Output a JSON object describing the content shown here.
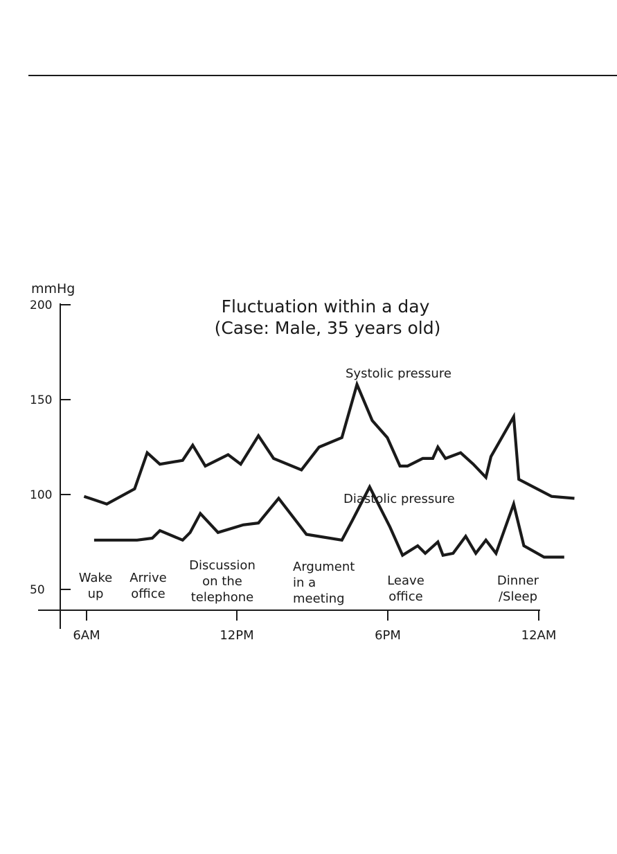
{
  "chart_data": {
    "type": "line",
    "title": "Fluctuation within a day",
    "subtitle": "(Case: Male, 35 years old)",
    "ylabel": "mmHg",
    "xlabel": "",
    "ylim": [
      50,
      200
    ],
    "y_ticks": [
      200,
      150,
      100,
      50
    ],
    "x_ticks": [
      "6AM",
      "12PM",
      "6PM",
      "12AM"
    ],
    "x_unit": "hours after midnight",
    "grid": false,
    "annotations": [
      {
        "lines": [
          "Wake",
          "up"
        ],
        "x": 6.5
      },
      {
        "lines": [
          "Arrive",
          "office"
        ],
        "x": 8.7
      },
      {
        "lines": [
          "Discussion",
          "on the",
          "telephone"
        ],
        "x": 10.8
      },
      {
        "lines": [
          "Argument",
          "in a",
          "meeting"
        ],
        "x": 15.1
      },
      {
        "lines": [
          "Leave",
          "office"
        ],
        "x": 19.2
      },
      {
        "lines": [
          "Dinner",
          "/Sleep"
        ],
        "x": 24.4
      }
    ],
    "series": [
      {
        "name": "Systolic pressure",
        "x": [
          5.9,
          6.8,
          7.9,
          8.4,
          8.9,
          9.8,
          10.2,
          10.7,
          11.6,
          12.1,
          12.8,
          13.4,
          14.5,
          15.2,
          16.1,
          16.7,
          17.3,
          17.9,
          18.4,
          18.7,
          19.3,
          19.7,
          19.9,
          20.2,
          20.8,
          21.3,
          21.8,
          22.0,
          22.9,
          23.1,
          24.4,
          25.3
        ],
        "values": [
          99,
          95,
          103,
          122,
          116,
          118,
          126,
          115,
          121,
          116,
          131,
          119,
          113,
          125,
          130,
          158,
          139,
          130,
          115,
          115,
          119,
          119,
          125,
          119,
          122,
          116,
          109,
          120,
          141,
          108,
          99,
          98
        ]
      },
      {
        "name": "Diastolic pressure",
        "x": [
          6.3,
          8.0,
          8.6,
          8.9,
          9.8,
          10.1,
          10.5,
          11.2,
          12.2,
          12.8,
          13.6,
          14.7,
          16.1,
          16.5,
          17.2,
          18.0,
          18.5,
          19.1,
          19.4,
          19.9,
          20.1,
          20.5,
          21.0,
          21.4,
          21.8,
          22.2,
          22.9,
          23.3,
          24.1,
          24.9
        ],
        "values": [
          76,
          76,
          77,
          81,
          76,
          80,
          90,
          80,
          84,
          85,
          98,
          79,
          76,
          86,
          104,
          83,
          68,
          73,
          69,
          75,
          68,
          69,
          78,
          69,
          76,
          69,
          95,
          73,
          67,
          67
        ]
      }
    ]
  }
}
